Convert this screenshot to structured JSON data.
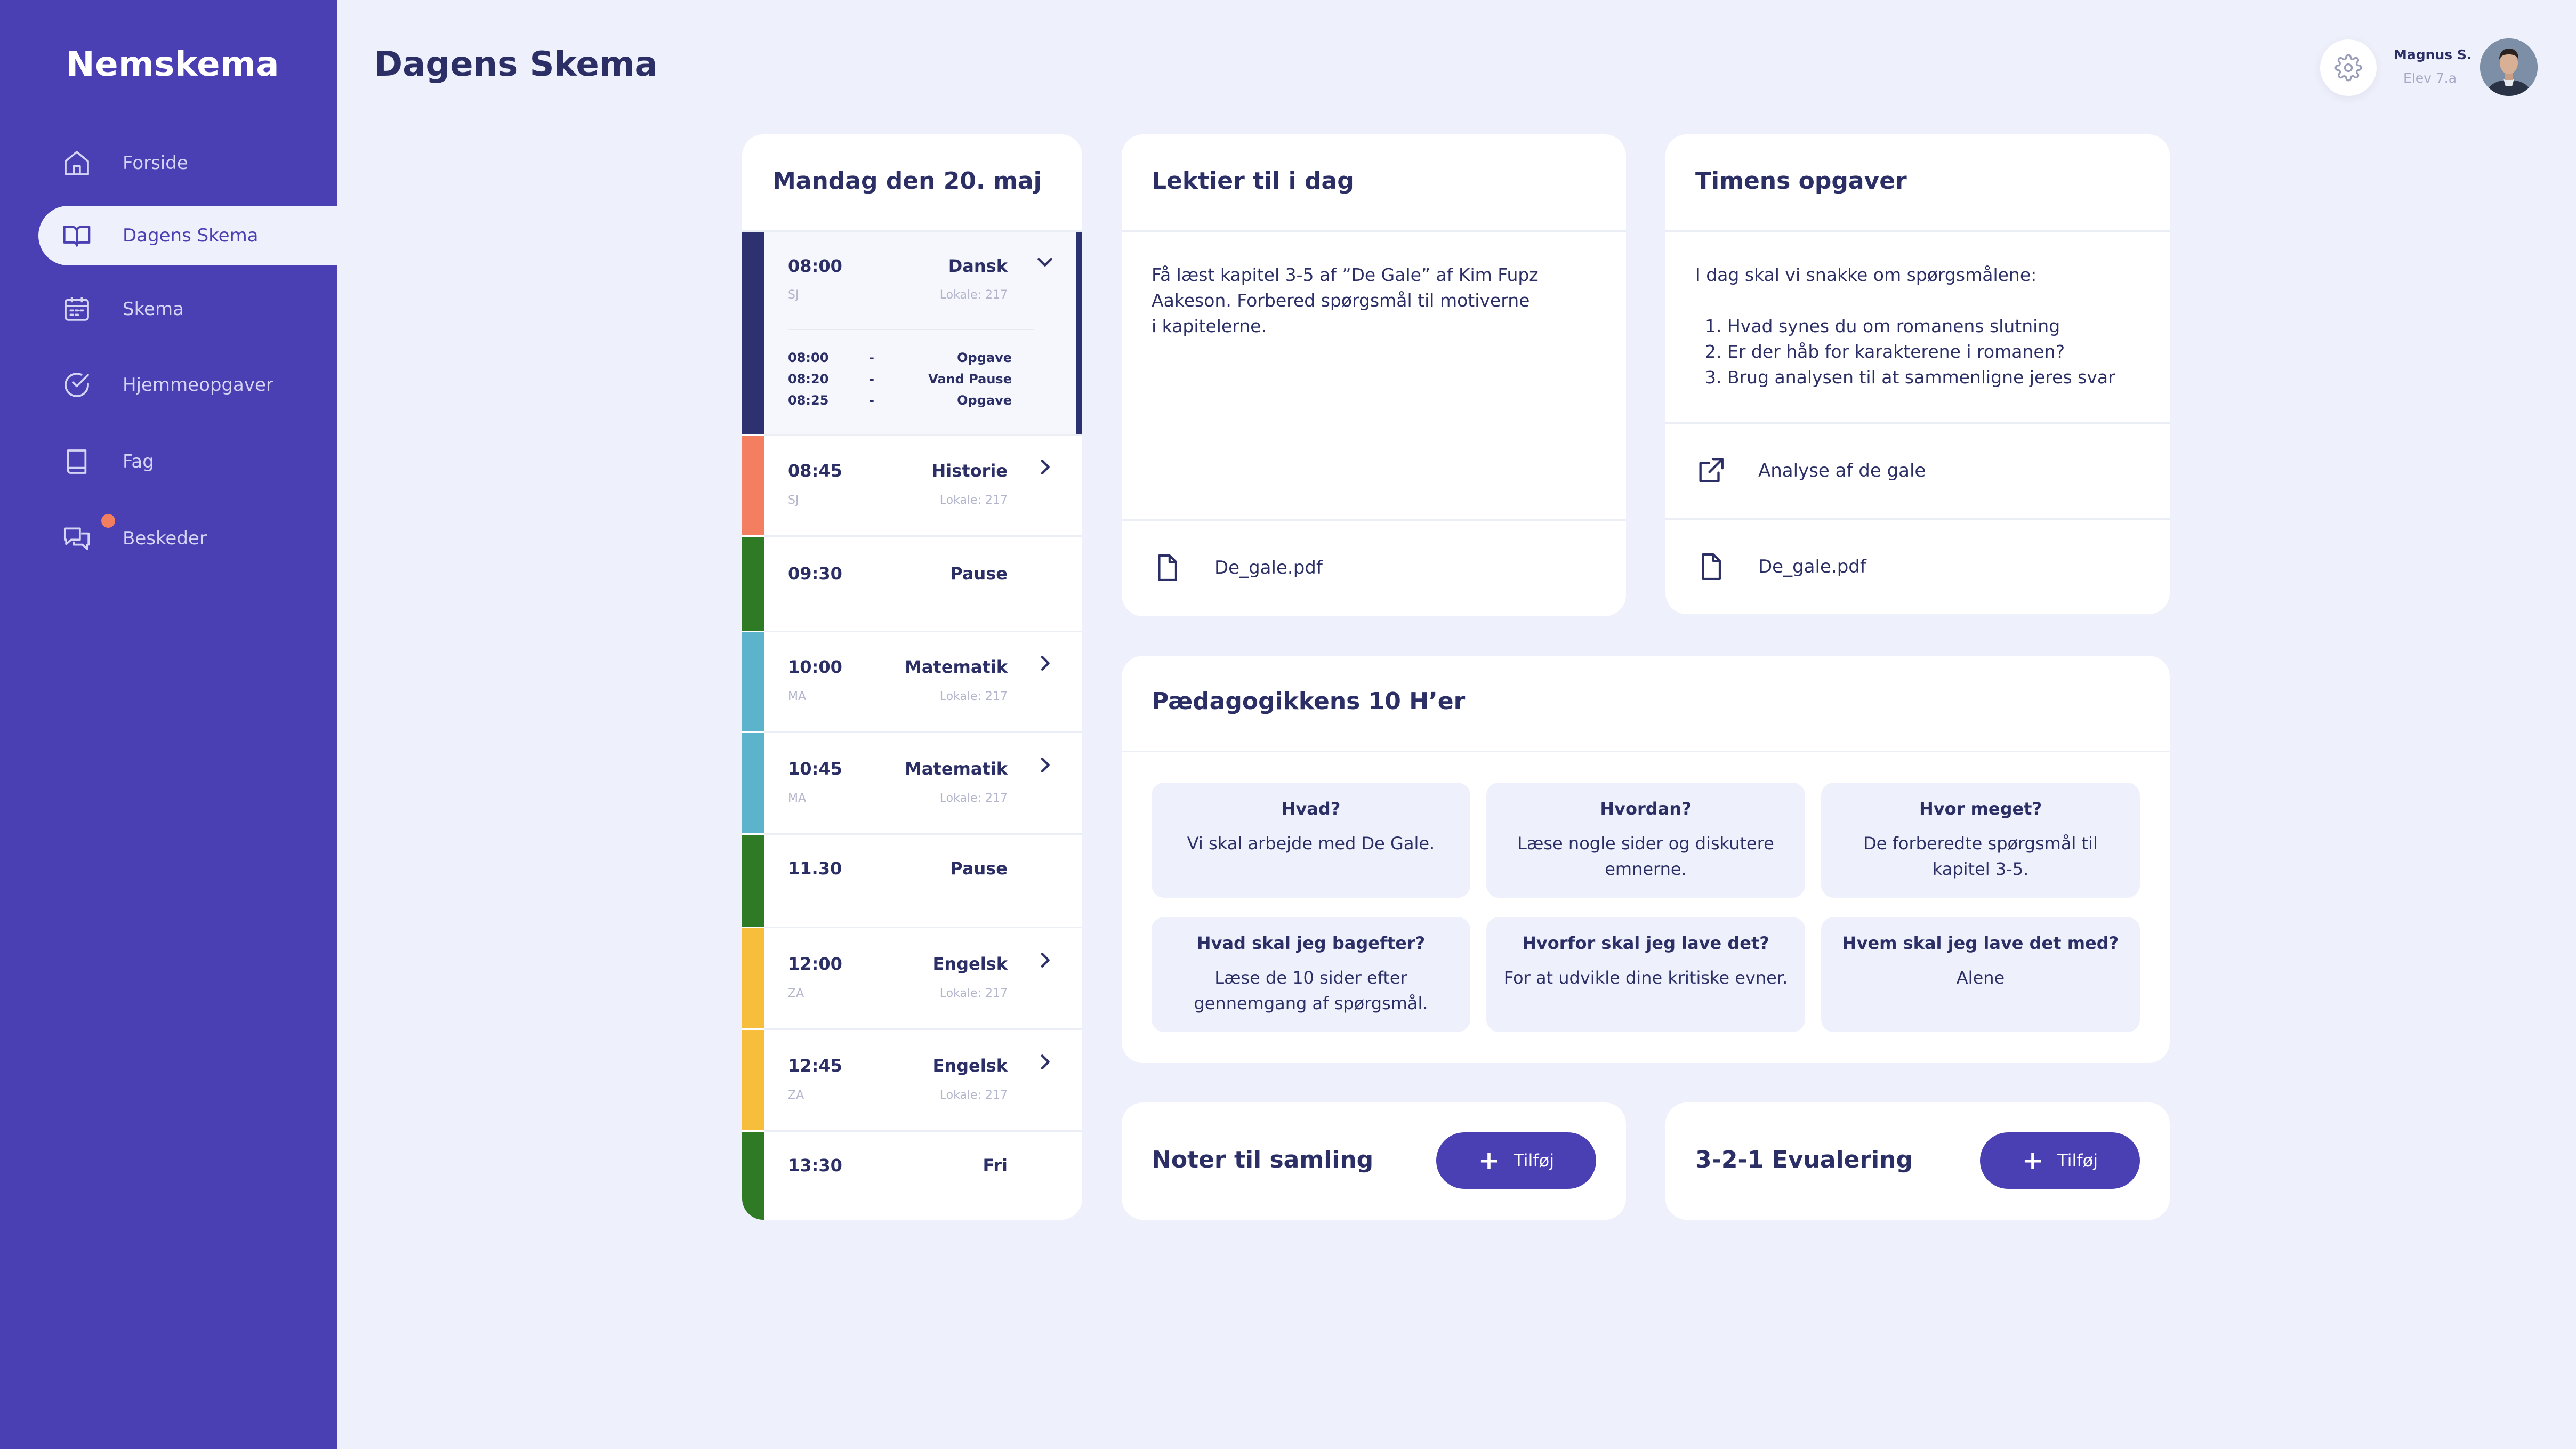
{
  "app": {
    "name": "Nemskema"
  },
  "sidebar": {
    "items": [
      {
        "label": "Forside",
        "icon": "home-icon"
      },
      {
        "label": "Dagens Skema",
        "icon": "open-book-icon",
        "active": true
      },
      {
        "label": "Skema",
        "icon": "calendar-icon"
      },
      {
        "label": "Hjemmeopgaver",
        "icon": "check-circle-icon"
      },
      {
        "label": "Fag",
        "icon": "book-icon"
      },
      {
        "label": "Beskeder",
        "icon": "chat-bubbles-icon",
        "has_notification": true
      }
    ]
  },
  "header": {
    "title": "Dagens Skema",
    "user": {
      "name": "Magnus S.",
      "role": "Elev 7.a"
    }
  },
  "schedule": {
    "date_title": "Mandag den 20. maj",
    "lessons": [
      {
        "time": "08:00",
        "subject": "Dansk",
        "teacher": "SJ",
        "room": "Lokale: 217",
        "color": "#2e3170",
        "expanded": true,
        "subitems": [
          {
            "time": "08:00",
            "dash": "-",
            "activity": "Opgave"
          },
          {
            "time": "08:20",
            "dash": "-",
            "activity": "Vand Pause"
          },
          {
            "time": "08:25",
            "dash": "-",
            "activity": "Opgave"
          }
        ]
      },
      {
        "time": "08:45",
        "subject": "Historie",
        "teacher": "SJ",
        "room": "Lokale: 217",
        "color": "#f47e60"
      },
      {
        "time": "09:30",
        "subject": "Pause",
        "color": "#2f7a24"
      },
      {
        "time": "10:00",
        "subject": "Matematik",
        "teacher": "MA",
        "room": "Lokale: 217",
        "color": "#5bb3cc"
      },
      {
        "time": "10:45",
        "subject": "Matematik",
        "teacher": "MA",
        "room": "Lokale: 217",
        "color": "#5bb3cc"
      },
      {
        "time": "11.30",
        "subject": "Pause",
        "color": "#2f7a24"
      },
      {
        "time": "12:00",
        "subject": "Engelsk",
        "teacher": "ZA",
        "room": "Lokale: 217",
        "color": "#f7be3c"
      },
      {
        "time": "12:45",
        "subject": "Engelsk",
        "teacher": "ZA",
        "room": "Lokale: 217",
        "color": "#f7be3c"
      },
      {
        "time": "13:30",
        "subject": "Fri",
        "color": "#2f7a24"
      }
    ]
  },
  "homework": {
    "title": "Lektier til i dag",
    "lines": [
      "Få læst kapitel 3-5 af ”De Gale” af Kim Fupz",
      "Aakeson. Forbered spørgsmål til motiverne",
      "i kapitelerne."
    ],
    "file": "De_gale.pdf"
  },
  "tasks": {
    "title": "Timens opgaver",
    "intro": "I dag skal vi snakke om spørgsmålene:",
    "items": [
      "1. Hvad synes du om romanens slutning",
      "2. Er der håb for karakterene i romanen?",
      "3. Brug analysen til at sammenligne jeres svar"
    ],
    "link": "Analyse af de gale",
    "file": "De_gale.pdf"
  },
  "pedagogy": {
    "title": "Pædagogikkens 10 H’er",
    "tiles": [
      {
        "q": "Hvad?",
        "a": "Vi skal arbejde med De Gale."
      },
      {
        "q": "Hvordan?",
        "a": "Læse nogle sider og diskutere emnerne."
      },
      {
        "q": "Hvor meget?",
        "a": "De forberedte spørgsmål til kapitel 3-5."
      },
      {
        "q": "Hvad skal jeg bagefter?",
        "a": "Læse de 10 sider efter gennemgang af spørgsmål."
      },
      {
        "q": "Hvorfor skal jeg lave det?",
        "a": "For at udvikle dine kritiske evner."
      },
      {
        "q": "Hvem skal jeg lave det med?",
        "a": "Alene"
      }
    ]
  },
  "notes": {
    "title": "Noter til samling",
    "button": "Tilføj"
  },
  "evaluation": {
    "title": "3-2-1  Evualering",
    "button": "Tilføj"
  },
  "colors": {
    "accent": "#4a40b3",
    "background": "#eef0fb",
    "notification": "#f47e60"
  }
}
